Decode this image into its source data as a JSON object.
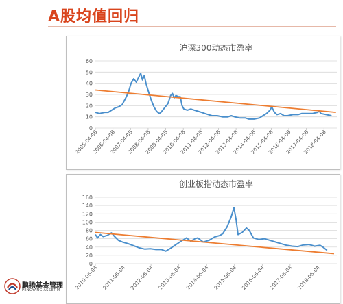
{
  "slide": {
    "title": "A股均值回归"
  },
  "logo": {
    "name": "鹏扬基金管理",
    "subtitle": "PENGYANG ASSET M"
  },
  "colors": {
    "series": "#4a8fcc",
    "trend": "#ed7d31",
    "title": "#d9441c"
  },
  "chart_data": [
    {
      "type": "line",
      "title": "沪深300动态市盈率",
      "ylim": [
        0,
        60
      ],
      "yticks": [
        0,
        10,
        20,
        30,
        40,
        50,
        60
      ],
      "x_tick_labels": [
        "2005-04-08",
        "2006-04-08",
        "2007-04-08",
        "2008-04-08",
        "2009-04-08",
        "2010-04-08",
        "2011-04-08",
        "2012-04-08",
        "2013-04-08",
        "2014-04-08",
        "2015-04-08",
        "2016-04-08",
        "2017-04-08",
        "2018-04-08"
      ],
      "xlim": [
        2005.27,
        2019.0
      ],
      "grid": true,
      "series": [
        {
          "values": [
            [
              2005.27,
              14
            ],
            [
              2005.5,
              13
            ],
            [
              2005.8,
              14
            ],
            [
              2006.0,
              14
            ],
            [
              2006.2,
              16
            ],
            [
              2006.4,
              18
            ],
            [
              2006.6,
              19
            ],
            [
              2006.8,
              21
            ],
            [
              2007.0,
              27
            ],
            [
              2007.15,
              32
            ],
            [
              2007.3,
              40
            ],
            [
              2007.45,
              44
            ],
            [
              2007.6,
              41
            ],
            [
              2007.75,
              46
            ],
            [
              2007.85,
              49
            ],
            [
              2007.95,
              43
            ],
            [
              2008.05,
              47
            ],
            [
              2008.15,
              40
            ],
            [
              2008.3,
              32
            ],
            [
              2008.45,
              25
            ],
            [
              2008.6,
              19
            ],
            [
              2008.75,
              15
            ],
            [
              2008.9,
              13
            ],
            [
              2009.0,
              14
            ],
            [
              2009.2,
              18
            ],
            [
              2009.4,
              22
            ],
            [
              2009.55,
              29
            ],
            [
              2009.65,
              31
            ],
            [
              2009.75,
              27
            ],
            [
              2009.85,
              29
            ],
            [
              2010.0,
              28
            ],
            [
              2010.1,
              28
            ],
            [
              2010.2,
              20
            ],
            [
              2010.3,
              17
            ],
            [
              2010.5,
              16
            ],
            [
              2010.7,
              17
            ],
            [
              2010.9,
              16
            ],
            [
              2011.1,
              15
            ],
            [
              2011.3,
              14
            ],
            [
              2011.5,
              13
            ],
            [
              2011.7,
              12
            ],
            [
              2011.9,
              11
            ],
            [
              2012.2,
              11
            ],
            [
              2012.5,
              10
            ],
            [
              2012.8,
              10
            ],
            [
              2013.0,
              11
            ],
            [
              2013.2,
              10
            ],
            [
              2013.5,
              9
            ],
            [
              2013.8,
              9
            ],
            [
              2014.0,
              8
            ],
            [
              2014.3,
              8
            ],
            [
              2014.6,
              9
            ],
            [
              2014.8,
              11
            ],
            [
              2015.0,
              13
            ],
            [
              2015.2,
              16
            ],
            [
              2015.3,
              19
            ],
            [
              2015.45,
              14
            ],
            [
              2015.6,
              12
            ],
            [
              2015.8,
              13
            ],
            [
              2016.0,
              11
            ],
            [
              2016.2,
              11
            ],
            [
              2016.5,
              12
            ],
            [
              2016.8,
              12
            ],
            [
              2017.0,
              13
            ],
            [
              2017.3,
              13
            ],
            [
              2017.6,
              13
            ],
            [
              2017.9,
              14
            ],
            [
              2018.0,
              15
            ],
            [
              2018.1,
              13
            ],
            [
              2018.4,
              12
            ],
            [
              2018.7,
              11
            ]
          ]
        }
      ],
      "trend": [
        [
          2005.27,
          34
        ],
        [
          2018.95,
          14
        ]
      ]
    },
    {
      "type": "line",
      "title": "创业板指动态市盈率",
      "ylim": [
        0,
        160
      ],
      "yticks": [
        0,
        20,
        40,
        60,
        80,
        100,
        120,
        140,
        160
      ],
      "x_tick_labels": [
        "2010-06-04",
        "2011-06-04",
        "2012-06-04",
        "2013-06-04",
        "2014-06-04",
        "2015-06-04",
        "2016-06-04",
        "2017-06-04",
        "2018-06-04"
      ],
      "xlim": [
        2010.42,
        2019.1
      ],
      "grid": true,
      "series": [
        {
          "values": [
            [
              2010.42,
              70
            ],
            [
              2010.5,
              62
            ],
            [
              2010.6,
              70
            ],
            [
              2010.7,
              65
            ],
            [
              2010.85,
              68
            ],
            [
              2011.0,
              74
            ],
            [
              2011.1,
              66
            ],
            [
              2011.25,
              56
            ],
            [
              2011.4,
              52
            ],
            [
              2011.6,
              48
            ],
            [
              2011.8,
              43
            ],
            [
              2012.0,
              38
            ],
            [
              2012.2,
              35
            ],
            [
              2012.4,
              36
            ],
            [
              2012.6,
              34
            ],
            [
              2012.8,
              34
            ],
            [
              2012.95,
              30
            ],
            [
              2013.1,
              36
            ],
            [
              2013.3,
              45
            ],
            [
              2013.5,
              54
            ],
            [
              2013.7,
              62
            ],
            [
              2013.85,
              54
            ],
            [
              2014.0,
              60
            ],
            [
              2014.1,
              62
            ],
            [
              2014.3,
              52
            ],
            [
              2014.5,
              56
            ],
            [
              2014.7,
              64
            ],
            [
              2014.9,
              68
            ],
            [
              2015.0,
              72
            ],
            [
              2015.15,
              88
            ],
            [
              2015.3,
              112
            ],
            [
              2015.4,
              135
            ],
            [
              2015.48,
              105
            ],
            [
              2015.55,
              70
            ],
            [
              2015.7,
              75
            ],
            [
              2015.85,
              86
            ],
            [
              2015.95,
              80
            ],
            [
              2016.1,
              62
            ],
            [
              2016.3,
              58
            ],
            [
              2016.5,
              60
            ],
            [
              2016.7,
              56
            ],
            [
              2016.9,
              52
            ],
            [
              2017.1,
              48
            ],
            [
              2017.3,
              44
            ],
            [
              2017.5,
              42
            ],
            [
              2017.7,
              41
            ],
            [
              2017.9,
              45
            ],
            [
              2018.1,
              46
            ],
            [
              2018.3,
              42
            ],
            [
              2018.5,
              44
            ],
            [
              2018.6,
              40
            ],
            [
              2018.75,
              32
            ]
          ]
        }
      ],
      "trend": [
        [
          2010.42,
          75
        ],
        [
          2019.0,
          24
        ]
      ]
    }
  ]
}
